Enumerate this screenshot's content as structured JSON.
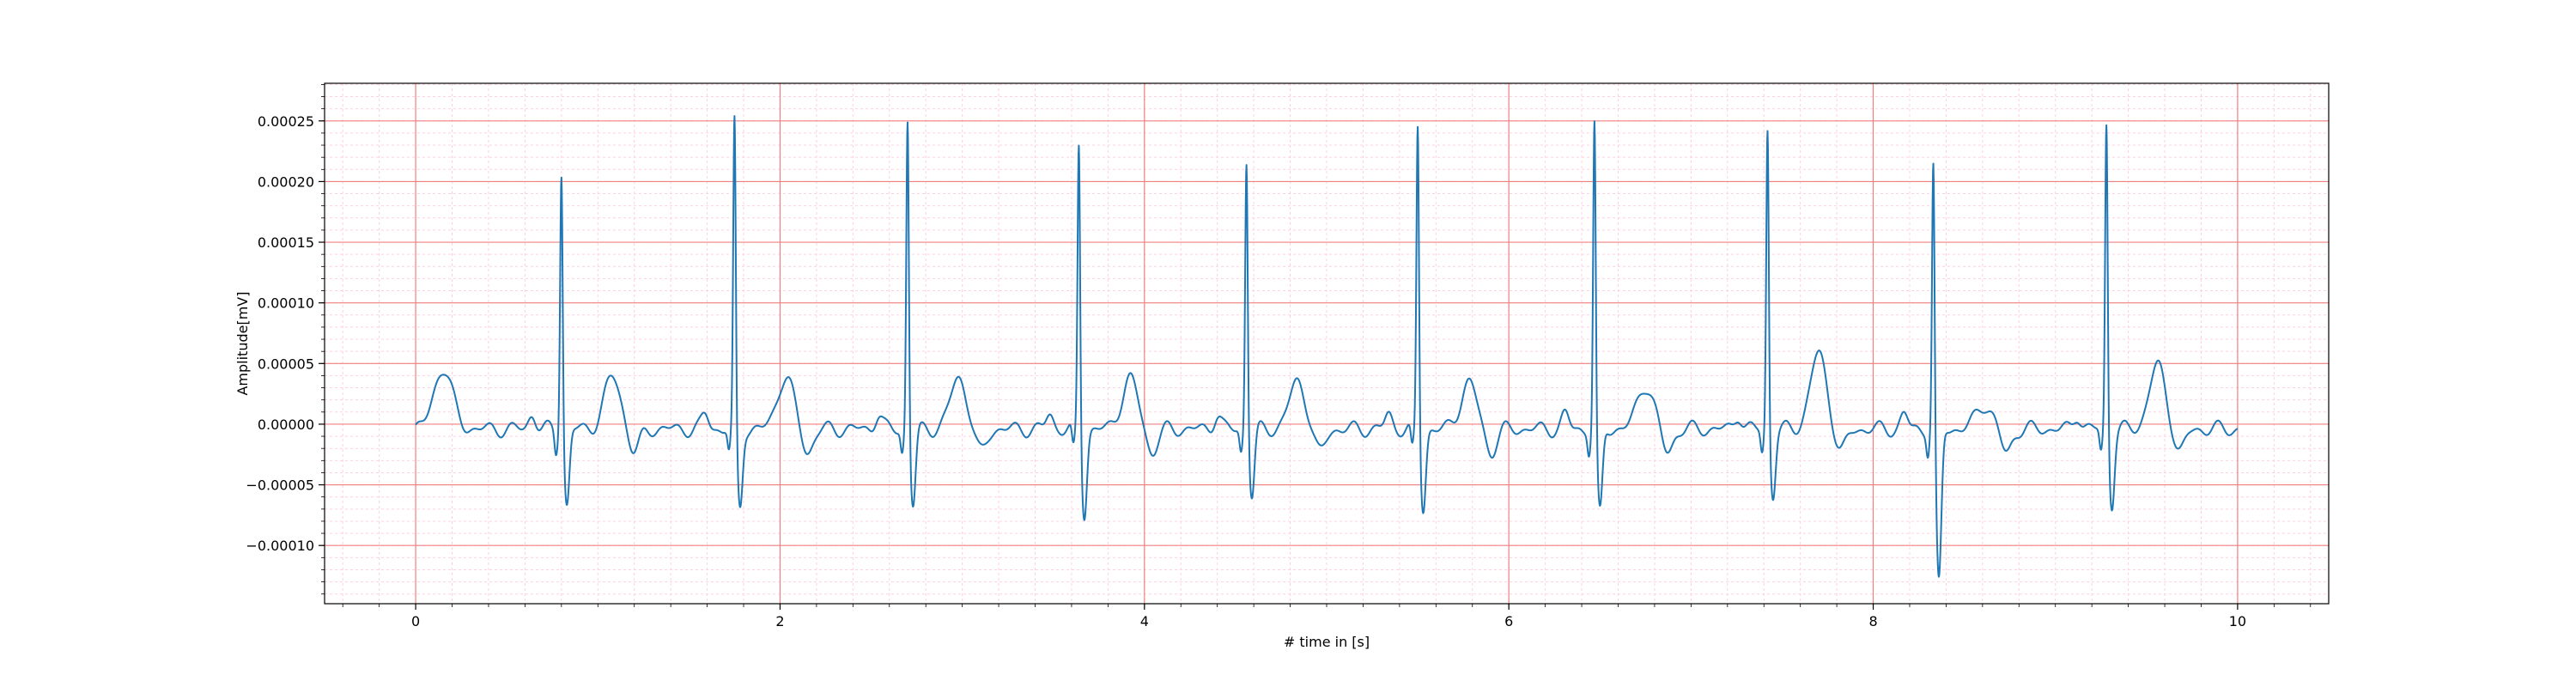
{
  "chart_data": {
    "type": "line",
    "title": "",
    "xlabel": "# time in [s]",
    "ylabel": "Amplitude[mV]",
    "xlim": [
      -0.5,
      10.5
    ],
    "ylim": [
      -0.000148,
      0.000281
    ],
    "x_major_ticks": [
      0,
      2,
      4,
      6,
      8,
      10
    ],
    "x_tick_labels": [
      "0",
      "2",
      "4",
      "6",
      "8",
      "10"
    ],
    "x_minor_step": 0.2,
    "y_major_ticks": [
      -0.0001,
      -5e-05,
      0.0,
      5e-05,
      0.0001,
      0.00015,
      0.0002,
      0.00025
    ],
    "y_tick_labels": [
      "−0.00010",
      "−0.00005",
      "0.00000",
      "0.00005",
      "0.00010",
      "0.00015",
      "0.00020",
      "0.00025"
    ],
    "y_minor_step": 1e-05,
    "grid": {
      "major": true,
      "minor": true,
      "major_color": "#f08080",
      "minor_color": "#ffd0e0"
    },
    "series": [
      {
        "color": "#1f77b4",
        "beats": [
          0.8,
          1.75,
          2.7,
          3.64,
          4.56,
          5.5,
          6.47,
          7.42,
          8.33,
          9.28
        ],
        "peaks": [
          0.000218,
          0.000258,
          0.00026,
          0.00024,
          0.000226,
          0.000255,
          0.000258,
          0.000252,
          0.000229,
          0.000257
        ],
        "troughs": [
          -6.3e-05,
          -6.5e-05,
          -6.3e-05,
          -7e-05,
          -5.5e-05,
          -6.6e-05,
          -7e-05,
          -5.5e-05,
          -0.000128,
          -6.2e-05
        ],
        "t_waves": [
          4.3e-05,
          4.3e-05,
          4.2e-05,
          4.1e-05,
          3.9e-05,
          3.8e-05,
          3.6e-05,
          6.2e-05,
          2e-05,
          5.2e-05
        ],
        "x": [
          0.0,
          0.05,
          0.1,
          0.15,
          0.2,
          0.25,
          0.3,
          0.4,
          0.5,
          0.6,
          0.65,
          0.7,
          0.75,
          0.8
        ],
        "y": [
          -5e-06,
          1.2e-05,
          4.5e-05,
          5.5e-05,
          1.5e-05,
          -1.5e-05,
          -1e-05,
          -8e-06,
          -2e-06,
          -3e-06,
          4e-06,
          -5e-06,
          -1.2e-05,
          0.000218
        ]
      }
    ]
  }
}
